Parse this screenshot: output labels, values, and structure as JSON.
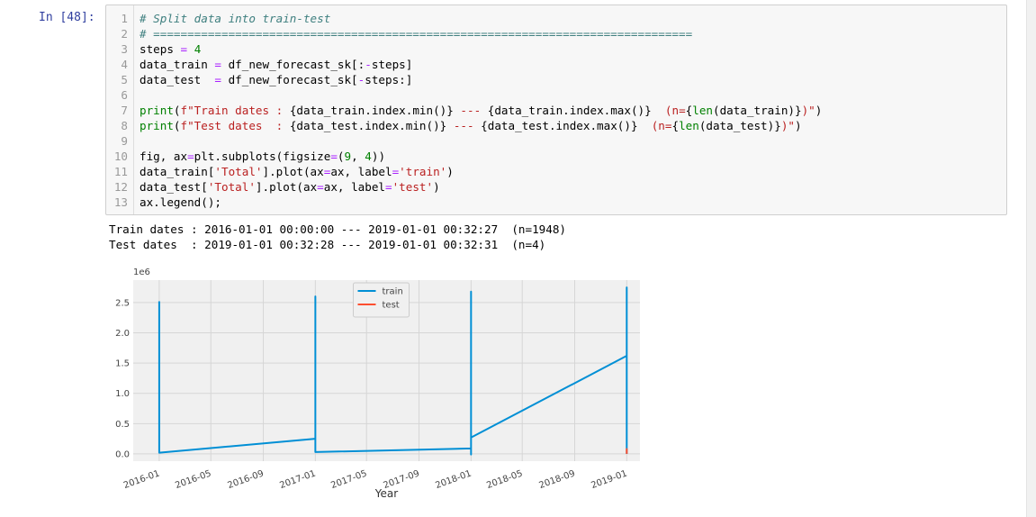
{
  "prompt": "In [48]:",
  "code": {
    "lines": [
      {
        "number": 1,
        "tokens": [
          {
            "text": "# Split data into train-test",
            "color": "#408080",
            "italic": true
          }
        ]
      },
      {
        "number": 2,
        "tokens": [
          {
            "text": "# ===============================================================================",
            "color": "#408080",
            "italic": true
          }
        ]
      },
      {
        "number": 3,
        "tokens": [
          "steps ",
          {
            "text": "=",
            "color": "#AA22FF"
          },
          " ",
          {
            "text": "4",
            "color": "#008000"
          }
        ]
      },
      {
        "number": 4,
        "tokens": [
          "data_train ",
          {
            "text": "=",
            "color": "#AA22FF"
          },
          " df_new_forecast_sk[:",
          {
            "text": "-",
            "color": "#AA22FF"
          },
          "steps]"
        ]
      },
      {
        "number": 5,
        "tokens": [
          "data_test  ",
          {
            "text": "=",
            "color": "#AA22FF"
          },
          " df_new_forecast_sk[",
          {
            "text": "-",
            "color": "#AA22FF"
          },
          "steps:]"
        ]
      },
      {
        "number": 6,
        "tokens": []
      },
      {
        "number": 7,
        "tokens": [
          {
            "text": "print",
            "color": "#008000"
          },
          "(",
          {
            "text": "f\"Train dates : ",
            "color": "#BA2121"
          },
          "{data_train.index.min()}",
          {
            "text": " --- ",
            "color": "#BA2121"
          },
          "{data_train.index.max()}",
          {
            "text": "  (n=",
            "color": "#BA2121"
          },
          "{",
          {
            "text": "len",
            "color": "#008000"
          },
          "(data_train)}",
          {
            "text": ")\"",
            "color": "#BA2121"
          },
          ")"
        ]
      },
      {
        "number": 8,
        "tokens": [
          {
            "text": "print",
            "color": "#008000"
          },
          "(",
          {
            "text": "f\"Test dates  : ",
            "color": "#BA2121"
          },
          "{data_test.index.min()}",
          {
            "text": " --- ",
            "color": "#BA2121"
          },
          "{data_test.index.max()}",
          {
            "text": "  (n=",
            "color": "#BA2121"
          },
          "{",
          {
            "text": "len",
            "color": "#008000"
          },
          "(data_test)}",
          {
            "text": ")\"",
            "color": "#BA2121"
          },
          ")"
        ]
      },
      {
        "number": 9,
        "tokens": []
      },
      {
        "number": 10,
        "tokens": [
          "fig, ax",
          {
            "text": "=",
            "color": "#AA22FF"
          },
          "plt.subplots(figsize",
          {
            "text": "=",
            "color": "#AA22FF"
          },
          "(",
          {
            "text": "9",
            "color": "#008000"
          },
          ", ",
          {
            "text": "4",
            "color": "#008000"
          },
          "))"
        ]
      },
      {
        "number": 11,
        "tokens": [
          "data_train[",
          {
            "text": "'Total'",
            "color": "#BA2121"
          },
          "].plot(ax",
          {
            "text": "=",
            "color": "#AA22FF"
          },
          "ax, label",
          {
            "text": "=",
            "color": "#AA22FF"
          },
          {
            "text": "'train'",
            "color": "#BA2121"
          },
          ")"
        ]
      },
      {
        "number": 12,
        "tokens": [
          "data_test[",
          {
            "text": "'Total'",
            "color": "#BA2121"
          },
          "].plot(ax",
          {
            "text": "=",
            "color": "#AA22FF"
          },
          "ax, label",
          {
            "text": "=",
            "color": "#AA22FF"
          },
          {
            "text": "'test'",
            "color": "#BA2121"
          },
          ")"
        ]
      },
      {
        "number": 13,
        "tokens": [
          "ax.legend();"
        ]
      }
    ]
  },
  "output": {
    "lines": [
      "Train dates : 2016-01-01 00:00:00 --- 2019-01-01 00:32:27  (n=1948)",
      "Test dates  : 2019-01-01 00:32:28 --- 2019-01-01 00:32:31  (n=4)"
    ]
  },
  "chart": {
    "type": "line",
    "x_label": "Year",
    "y_offset_label": "1e6",
    "xlim": [
      "2015-11",
      "2019-02"
    ],
    "xticks": [
      "2016-01",
      "2016-05",
      "2016-09",
      "2017-01",
      "2017-05",
      "2017-09",
      "2018-01",
      "2018-05",
      "2018-09",
      "2019-01"
    ],
    "ylim": [
      -0.12,
      2.87
    ],
    "yticks": [
      {
        "value": 0,
        "label": "0.0"
      },
      0.5,
      {
        "value": 1,
        "label": "1.0"
      },
      1.5,
      {
        "value": 2,
        "label": "2.0"
      },
      2.5
    ],
    "grid": true,
    "legend": "upper center",
    "series": [
      {
        "name": "train",
        "color": "#008fd5",
        "x": [
          "2016-01",
          "2016-01",
          "2017-01",
          "2017-01",
          "2017-01",
          "2018-01",
          "2018-01",
          "2018-01",
          "2018-01",
          "2019-01",
          "2019-01",
          "2019-01"
        ],
        "values": [
          2.52,
          0.02,
          0.25,
          2.6,
          0.03,
          0.09,
          2.68,
          -0.01,
          0.27,
          1.62,
          2.75,
          0.0
        ]
      },
      {
        "name": "test",
        "color": "#fc4f30",
        "x": [
          "2019-01",
          "2019-01",
          "2019-01",
          "2019-01"
        ],
        "values": [
          0.0,
          0.08,
          0.03,
          0.01
        ]
      }
    ]
  }
}
